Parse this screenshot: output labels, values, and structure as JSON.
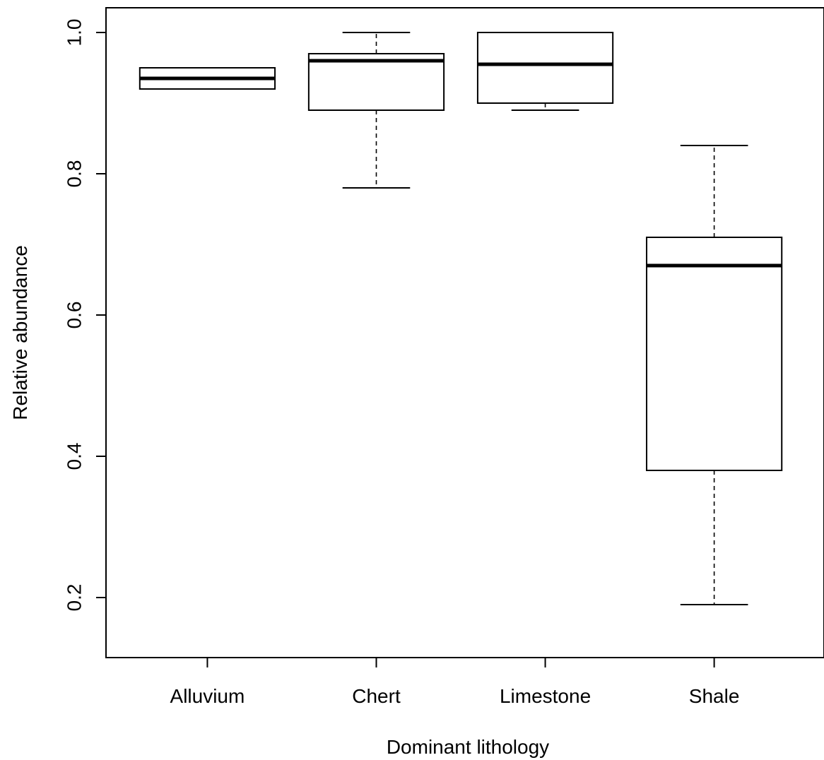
{
  "chart_data": {
    "type": "boxplot",
    "title": "",
    "xlabel": "Dominant lithology",
    "ylabel": "Relative abundance",
    "ylim": [
      0.115,
      1.035
    ],
    "y_ticks": [
      0.2,
      0.4,
      0.6,
      0.8,
      1.0
    ],
    "y_tick_labels": [
      "0.2",
      "0.4",
      "0.6",
      "0.8",
      "1.0"
    ],
    "categories": [
      "Alluvium",
      "Chert",
      "Limestone",
      "Shale"
    ],
    "boxes": [
      {
        "category": "Alluvium",
        "whisker_low": 0.92,
        "q1": 0.92,
        "median": 0.935,
        "q3": 0.95,
        "whisker_high": 0.95
      },
      {
        "category": "Chert",
        "whisker_low": 0.78,
        "q1": 0.89,
        "median": 0.96,
        "q3": 0.97,
        "whisker_high": 1.0
      },
      {
        "category": "Limestone",
        "whisker_low": 0.89,
        "q1": 0.9,
        "median": 0.955,
        "q3": 1.0,
        "whisker_high": 1.0
      },
      {
        "category": "Shale",
        "whisker_low": 0.19,
        "q1": 0.38,
        "median": 0.67,
        "q3": 0.71,
        "whisker_high": 0.84
      }
    ],
    "grid": false,
    "legend": "none",
    "colors": {
      "stroke": "#000000",
      "fill": "#ffffff"
    }
  }
}
